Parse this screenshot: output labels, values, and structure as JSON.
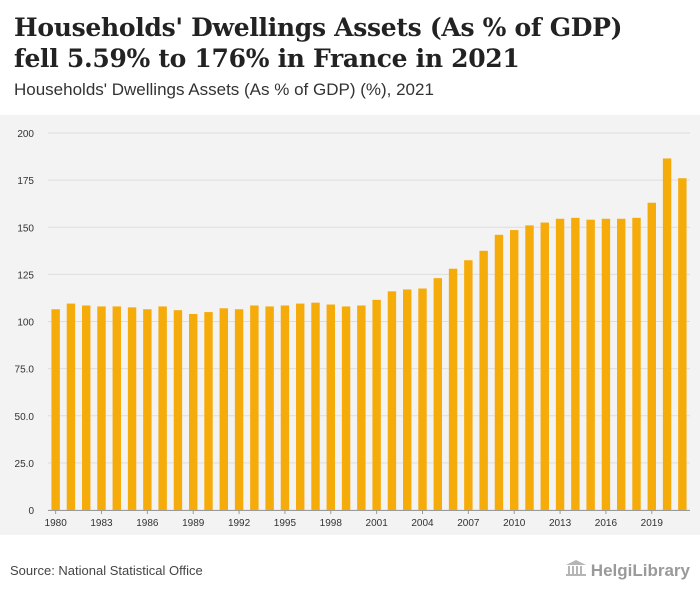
{
  "header": {
    "title": "Households' Dwellings Assets (As % of GDP) fell 5.59% to 176% in France in 2021",
    "subtitle": "Households' Dwellings Assets (As % of GDP) (%), 2021"
  },
  "footer": {
    "source": "Source: National Statistical Office",
    "brand": "HelgiLibrary"
  },
  "colors": {
    "bar": "#f5ab0a",
    "grid": "#dddddd",
    "plot_bg": "#f3f3f3",
    "axis_text": "#333333"
  },
  "chart_data": {
    "type": "bar",
    "title": "Households' Dwellings Assets (As % of GDP) (%), 2021",
    "xlabel": "",
    "ylabel": "",
    "ylim": [
      0,
      200
    ],
    "grid": true,
    "yticks": [
      "0",
      "25.0",
      "50.0",
      "75.0",
      "100",
      "125",
      "150",
      "175",
      "200"
    ],
    "xtick_labels": [
      "1980",
      "1983",
      "1986",
      "1989",
      "1992",
      "1995",
      "1998",
      "2001",
      "2004",
      "2007",
      "2010",
      "2013",
      "2016",
      "2019"
    ],
    "categories": [
      "1980",
      "1981",
      "1982",
      "1983",
      "1984",
      "1985",
      "1986",
      "1987",
      "1988",
      "1989",
      "1990",
      "1991",
      "1992",
      "1993",
      "1994",
      "1995",
      "1996",
      "1997",
      "1998",
      "1999",
      "2000",
      "2001",
      "2002",
      "2003",
      "2004",
      "2005",
      "2006",
      "2007",
      "2008",
      "2009",
      "2010",
      "2011",
      "2012",
      "2013",
      "2014",
      "2015",
      "2016",
      "2017",
      "2018",
      "2019",
      "2020",
      "2021"
    ],
    "values": [
      106.5,
      109.5,
      108.5,
      108,
      108,
      107.5,
      106.5,
      108,
      106,
      104,
      105,
      107,
      106.5,
      108.5,
      108,
      108.5,
      109.5,
      110,
      109,
      108,
      108.5,
      111.5,
      116,
      117,
      117.5,
      123,
      128,
      132.5,
      137.5,
      146,
      148.5,
      151,
      152.5,
      154.5,
      155,
      154,
      154.5,
      154.5,
      155,
      163,
      186.5,
      176
    ]
  }
}
